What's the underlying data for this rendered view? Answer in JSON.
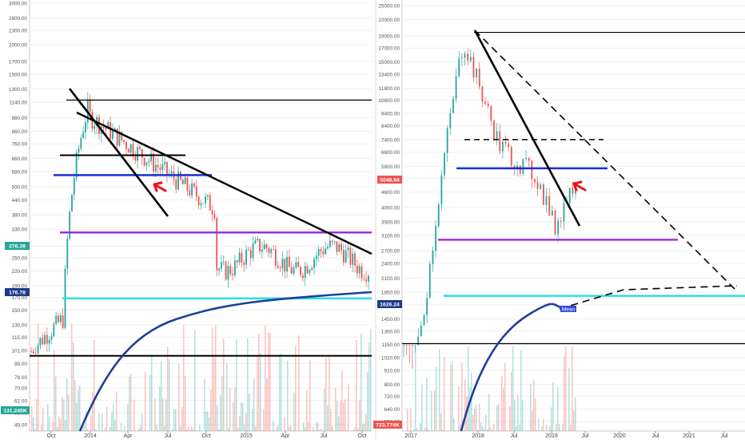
{
  "chart_data": [
    {
      "type": "candlestick",
      "scale": "log",
      "left_axis_ticks": [
        "3000.00",
        "2600.00",
        "2300.00",
        "2000.00",
        "1700.00",
        "1500.00",
        "1300.00",
        "1140.00",
        "980.00",
        "860.00",
        "760.00",
        "660.00",
        "580.00",
        "500.00",
        "440.00",
        "380.00",
        "330.00",
        "280.00",
        "250.00",
        "220.00",
        "190.00",
        "170.00",
        "150.00",
        "130.00",
        "115.00",
        "101.00",
        "89.00",
        "78.00",
        "70.00",
        "62.00",
        "55.00",
        "49.00"
      ],
      "x_ticks": [
        "Oct",
        "2014",
        "Apr",
        "Jul",
        "Oct",
        "2015",
        "Apr",
        "Jul",
        "Oct"
      ],
      "price_labels": [
        {
          "text": "276.39",
          "color": "#26a69a"
        },
        {
          "text": "176.78",
          "color": "#1e3a8a"
        },
        {
          "text": "131.245K",
          "color": "#26a69a"
        }
      ],
      "horizontal_levels": [
        {
          "value": 1165,
          "color": "#000000"
        },
        {
          "value": 680,
          "color": "#000000"
        },
        {
          "value": 560,
          "color": "#1a2fd6"
        },
        {
          "value": 320,
          "color": "#9b30d9"
        },
        {
          "value": 168,
          "color": "#2de0e8"
        },
        {
          "value": 96,
          "color": "#000000"
        }
      ],
      "mean_label": ""
    },
    {
      "type": "candlestick",
      "scale": "log",
      "left_axis_ticks": [
        "25000.00",
        "22000.00",
        "19000.00",
        "17000.00",
        "15000.00",
        "13400.00",
        "11800.00",
        "10600.00",
        "9400.00",
        "8400.00",
        "7400.00",
        "6600.00",
        "5800.00",
        "5200.00",
        "4600.00",
        "4000.00",
        "3500.00",
        "3100.00",
        "2700.00",
        "2400.00",
        "2100.00",
        "1850.00",
        "1650.00",
        "1450.00",
        "1300.00",
        "1150.00",
        "1020.00",
        "910.00",
        "800.00",
        "720.00",
        "640.00",
        "572.00"
      ],
      "x_ticks": [
        "2017",
        "2018",
        "Jul",
        "2019",
        "Jul",
        "2020",
        "Jul",
        "2021",
        "Jul"
      ],
      "price_labels": [
        {
          "text": "5048.64",
          "color": "#ef5350"
        },
        {
          "text": "1626.24",
          "color": "#1e3a8a"
        },
        {
          "text": "723.774K",
          "color": "#ef5350"
        }
      ],
      "horizontal_levels": [
        {
          "value": 19600,
          "color": "#000000"
        },
        {
          "value": 7400,
          "color": "#000000",
          "dashed": true
        },
        {
          "value": 5700,
          "color": "#1a2fd6"
        },
        {
          "value": 2980,
          "color": "#9b30d9"
        },
        {
          "value": 1790,
          "color": "#2de0e8"
        },
        {
          "value": 1160,
          "color": "#000000"
        }
      ],
      "mean_label": "Mean"
    }
  ]
}
